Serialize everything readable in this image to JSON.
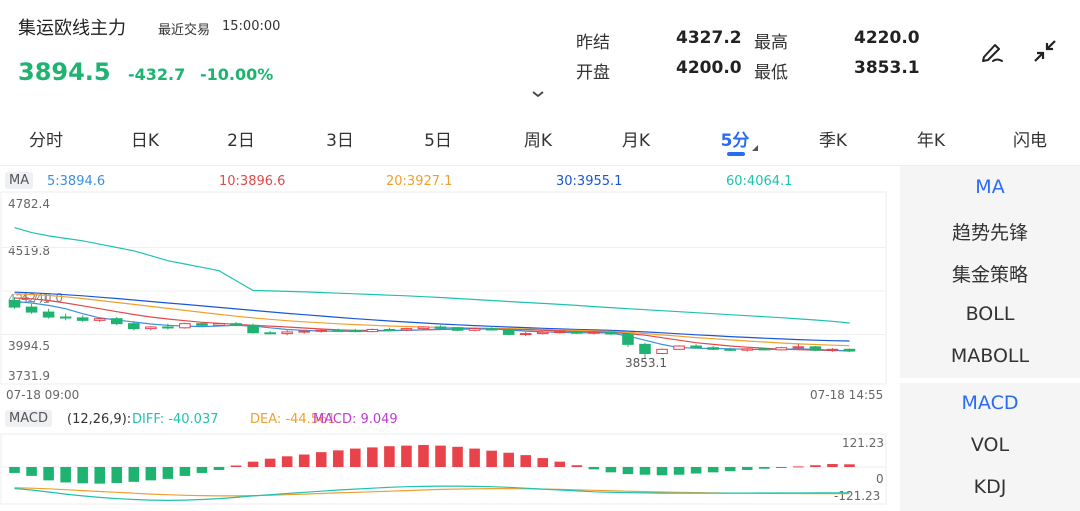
{
  "header": {
    "name": "集运欧线主力",
    "trade_label": "最近交易",
    "trade_time": "15:00:00",
    "price": "3894.5",
    "change": "-432.7",
    "change_pct": "-10.00%"
  },
  "quote": {
    "prev_settle_label": "昨结",
    "prev_settle": "4327.2",
    "open_label": "开盘",
    "open": "4200.0",
    "high_label": "最高",
    "high": "4220.0",
    "low_label": "最低",
    "low": "3853.1"
  },
  "icons": {
    "edit": "pen-icon",
    "expand": "fullscreen-icon",
    "caret": "chevron-down-icon"
  },
  "tabs": [
    "分时",
    "日K",
    "2日",
    "3日",
    "5日",
    "周K",
    "月K",
    "5分",
    "季K",
    "年K",
    "闪电"
  ],
  "active_tab": "5分",
  "ma": {
    "badge": "MA",
    "ma5": "5:3894.6",
    "ma10": "10:3896.6",
    "ma20": "20:3927.1",
    "ma30": "30:3955.1",
    "ma60": "60:4064.1"
  },
  "price_axis": {
    "t1": "4782.4",
    "t2": "4519.8",
    "t3": "4257.1",
    "t4": "3994.5",
    "t5": "3731.9"
  },
  "overlay_label": "4240.0",
  "low_marker": "3853.1",
  "time_axis": {
    "start": "07-18 09:00",
    "end": "07-18 14:55"
  },
  "macd": {
    "badge": "MACD",
    "params": "(12,26,9):",
    "diff": "DIFF: -40.037",
    "dea": "DEA: -44.561",
    "macd": "MACD: 9.049",
    "axis_top": "121.23",
    "axis_mid": "0",
    "axis_bottom": "-121.23"
  },
  "right_panel": {
    "main_items": [
      "MA",
      "趋势先锋",
      "集金策略",
      "BOLL",
      "MABOLL"
    ],
    "sub_items": [
      "MACD",
      "VOL",
      "KDJ"
    ]
  },
  "colors": {
    "up": "#e8424b",
    "down": "#1eb371",
    "accent": "#2a6cf0",
    "ma5": "#3b8fe0",
    "ma10": "#e04a4a",
    "ma20": "#f0a030",
    "ma30": "#1a57d6",
    "ma60": "#1fc2b0"
  },
  "chart_data": {
    "type": "candlestick",
    "interval": "5分",
    "y_ticks": [
      4782.4,
      4519.8,
      4257.1,
      3994.5,
      3731.9
    ],
    "ylim": [
      3731.9,
      4782.4
    ],
    "x_labels": [
      "07-18 09:00",
      "07-18 14:55"
    ],
    "candles": [
      [
        4200,
        4220,
        4150,
        4160
      ],
      [
        4160,
        4180,
        4120,
        4130
      ],
      [
        4130,
        4150,
        4090,
        4100
      ],
      [
        4100,
        4120,
        4080,
        4095
      ],
      [
        4095,
        4110,
        4070,
        4080
      ],
      [
        4080,
        4095,
        4070,
        4090
      ],
      [
        4090,
        4100,
        4050,
        4060
      ],
      [
        4060,
        4075,
        4020,
        4030
      ],
      [
        4030,
        4045,
        4020,
        4040
      ],
      [
        4040,
        4060,
        4025,
        4035
      ],
      [
        4035,
        4065,
        4030,
        4060
      ],
      [
        4060,
        4070,
        4040,
        4050
      ],
      [
        4050,
        4065,
        4045,
        4060
      ],
      [
        4060,
        4070,
        4045,
        4050
      ],
      [
        4050,
        4060,
        4000,
        4005
      ],
      [
        4005,
        4015,
        3995,
        4000
      ],
      [
        4000,
        4020,
        3990,
        4010
      ],
      [
        4010,
        4020,
        4000,
        4015
      ],
      [
        4015,
        4025,
        4005,
        4020
      ],
      [
        4020,
        4030,
        4010,
        4018
      ],
      [
        4018,
        4028,
        4008,
        4012
      ],
      [
        4012,
        4030,
        4008,
        4025
      ],
      [
        4025,
        4035,
        4015,
        4022
      ],
      [
        4022,
        4035,
        4015,
        4030
      ],
      [
        4030,
        4045,
        4020,
        4040
      ],
      [
        4040,
        4050,
        4028,
        4035
      ],
      [
        4035,
        4040,
        4015,
        4020
      ],
      [
        4020,
        4035,
        4015,
        4030
      ],
      [
        4030,
        4038,
        4018,
        4022
      ],
      [
        4022,
        4030,
        3990,
        3995
      ],
      [
        3995,
        4010,
        3985,
        4000
      ],
      [
        4000,
        4015,
        3995,
        4008
      ],
      [
        4008,
        4020,
        4000,
        4012
      ],
      [
        4012,
        4018,
        3998,
        4002
      ],
      [
        4002,
        4012,
        3995,
        4008
      ],
      [
        4008,
        4012,
        3990,
        3998
      ],
      [
        3998,
        4005,
        3920,
        3935
      ],
      [
        3935,
        3945,
        3853.1,
        3880
      ],
      [
        3880,
        3910,
        3875,
        3905
      ],
      [
        3905,
        3930,
        3900,
        3925
      ],
      [
        3925,
        3935,
        3910,
        3915
      ],
      [
        3915,
        3925,
        3900,
        3905
      ],
      [
        3905,
        3915,
        3895,
        3900
      ],
      [
        3900,
        3912,
        3892,
        3908
      ],
      [
        3908,
        3915,
        3898,
        3902
      ],
      [
        3902,
        3920,
        3898,
        3915
      ],
      [
        3915,
        3940,
        3905,
        3920
      ],
      [
        3920,
        3925,
        3895,
        3900
      ],
      [
        3900,
        3912,
        3890,
        3905
      ],
      [
        3905,
        3910,
        3888,
        3894.5
      ]
    ],
    "ma_lines": {
      "ma5": [
        4195,
        4185,
        4170,
        4150,
        4120,
        4095,
        4082,
        4070,
        4058,
        4050,
        4045,
        4042,
        4046,
        4050,
        4045,
        4035,
        4025,
        4020,
        4015,
        4015,
        4013,
        4015,
        4018,
        4020,
        4023,
        4028,
        4030,
        4030,
        4028,
        4022,
        4015,
        4010,
        4008,
        4005,
        4005,
        4004,
        3985,
        3960,
        3935,
        3915,
        3912,
        3910,
        3908,
        3905,
        3904,
        3905,
        3908,
        3905,
        3900,
        3895
      ],
      "ma10": [
        4215,
        4210,
        4200,
        4185,
        4168,
        4150,
        4132,
        4115,
        4100,
        4088,
        4078,
        4068,
        4062,
        4056,
        4050,
        4045,
        4040,
        4034,
        4028,
        4022,
        4020,
        4019,
        4018,
        4020,
        4022,
        4025,
        4027,
        4028,
        4028,
        4026,
        4024,
        4020,
        4016,
        4012,
        4010,
        4008,
        4000,
        3990,
        3975,
        3960,
        3945,
        3935,
        3925,
        3918,
        3912,
        3906,
        3903,
        3900,
        3898,
        3897
      ],
      "ma20": [
        4240,
        4236,
        4230,
        4222,
        4212,
        4200,
        4188,
        4176,
        4164,
        4152,
        4140,
        4128,
        4116,
        4105,
        4095,
        4086,
        4078,
        4071,
        4065,
        4059,
        4054,
        4050,
        4046,
        4043,
        4040,
        4038,
        4036,
        4034,
        4032,
        4030,
        4028,
        4025,
        4022,
        4019,
        4016,
        4013,
        4008,
        4000,
        3992,
        3984,
        3976,
        3969,
        3962,
        3955,
        3949,
        3943,
        3938,
        3934,
        3930,
        3927
      ],
      "ma30": [
        4250,
        4246,
        4241,
        4235,
        4228,
        4220,
        4212,
        4203,
        4194,
        4185,
        4176,
        4167,
        4158,
        4149,
        4140,
        4131,
        4122,
        4114,
        4106,
        4098,
        4090,
        4083,
        4076,
        4070,
        4064,
        4058,
        4053,
        4048,
        4044,
        4040,
        4036,
        4032,
        4029,
        4025,
        4022,
        4019,
        4015,
        4010,
        4005,
        3999,
        3993,
        3988,
        3982,
        3977,
        3972,
        3968,
        3964,
        3960,
        3957,
        3955
      ],
      "ma60": [
        4640,
        4610,
        4590,
        4575,
        4560,
        4540,
        4520,
        4500,
        4470,
        4440,
        4420,
        4400,
        4380,
        4320,
        4260,
        4258,
        4255,
        4252,
        4248,
        4244,
        4240,
        4236,
        4232,
        4228,
        4223,
        4218,
        4212,
        4206,
        4200,
        4194,
        4188,
        4182,
        4176,
        4170,
        4163,
        4157,
        4150,
        4144,
        4138,
        4132,
        4126,
        4120,
        4114,
        4108,
        4102,
        4096,
        4089,
        4082,
        4074,
        4064.1
      ]
    },
    "macd_hist": [
      -20,
      -30,
      -45,
      -52,
      -55,
      -56,
      -54,
      -50,
      -45,
      -40,
      -30,
      -20,
      -10,
      5,
      18,
      28,
      36,
      42,
      50,
      56,
      62,
      66,
      70,
      72,
      74,
      72,
      68,
      62,
      55,
      48,
      40,
      30,
      18,
      6,
      -8,
      -18,
      -24,
      -26,
      -28,
      -26,
      -22,
      -18,
      -14,
      -10,
      -6,
      -2,
      2,
      6,
      10,
      9.049
    ],
    "macd_diff": [
      -10,
      -20,
      -34,
      -48,
      -60,
      -70,
      -78,
      -84,
      -88,
      -90,
      -88,
      -84,
      -78,
      -70,
      -60,
      -52,
      -44,
      -36,
      -28,
      -20,
      -14,
      -8,
      -2,
      2,
      4,
      6,
      6,
      4,
      2,
      -2,
      -8,
      -14,
      -20,
      -26,
      -32,
      -36,
      -38,
      -40,
      -41,
      -42,
      -42,
      -42,
      -41,
      -41,
      -40.5,
      -40.2,
      -40.1,
      -40,
      -40.037,
      -40.037
    ],
    "macd_dea": [
      -5,
      -8,
      -12,
      -18,
      -24,
      -30,
      -36,
      -42,
      -48,
      -52,
      -56,
      -58,
      -60,
      -60,
      -58,
      -56,
      -52,
      -48,
      -44,
      -40,
      -36,
      -32,
      -28,
      -24,
      -20,
      -16,
      -14,
      -12,
      -11,
      -11,
      -12,
      -14,
      -16,
      -19,
      -22,
      -25,
      -28,
      -31,
      -34,
      -36,
      -38,
      -40,
      -41,
      -42,
      -43,
      -43.5,
      -44,
      -44.3,
      -44.5,
      -44.561
    ]
  }
}
